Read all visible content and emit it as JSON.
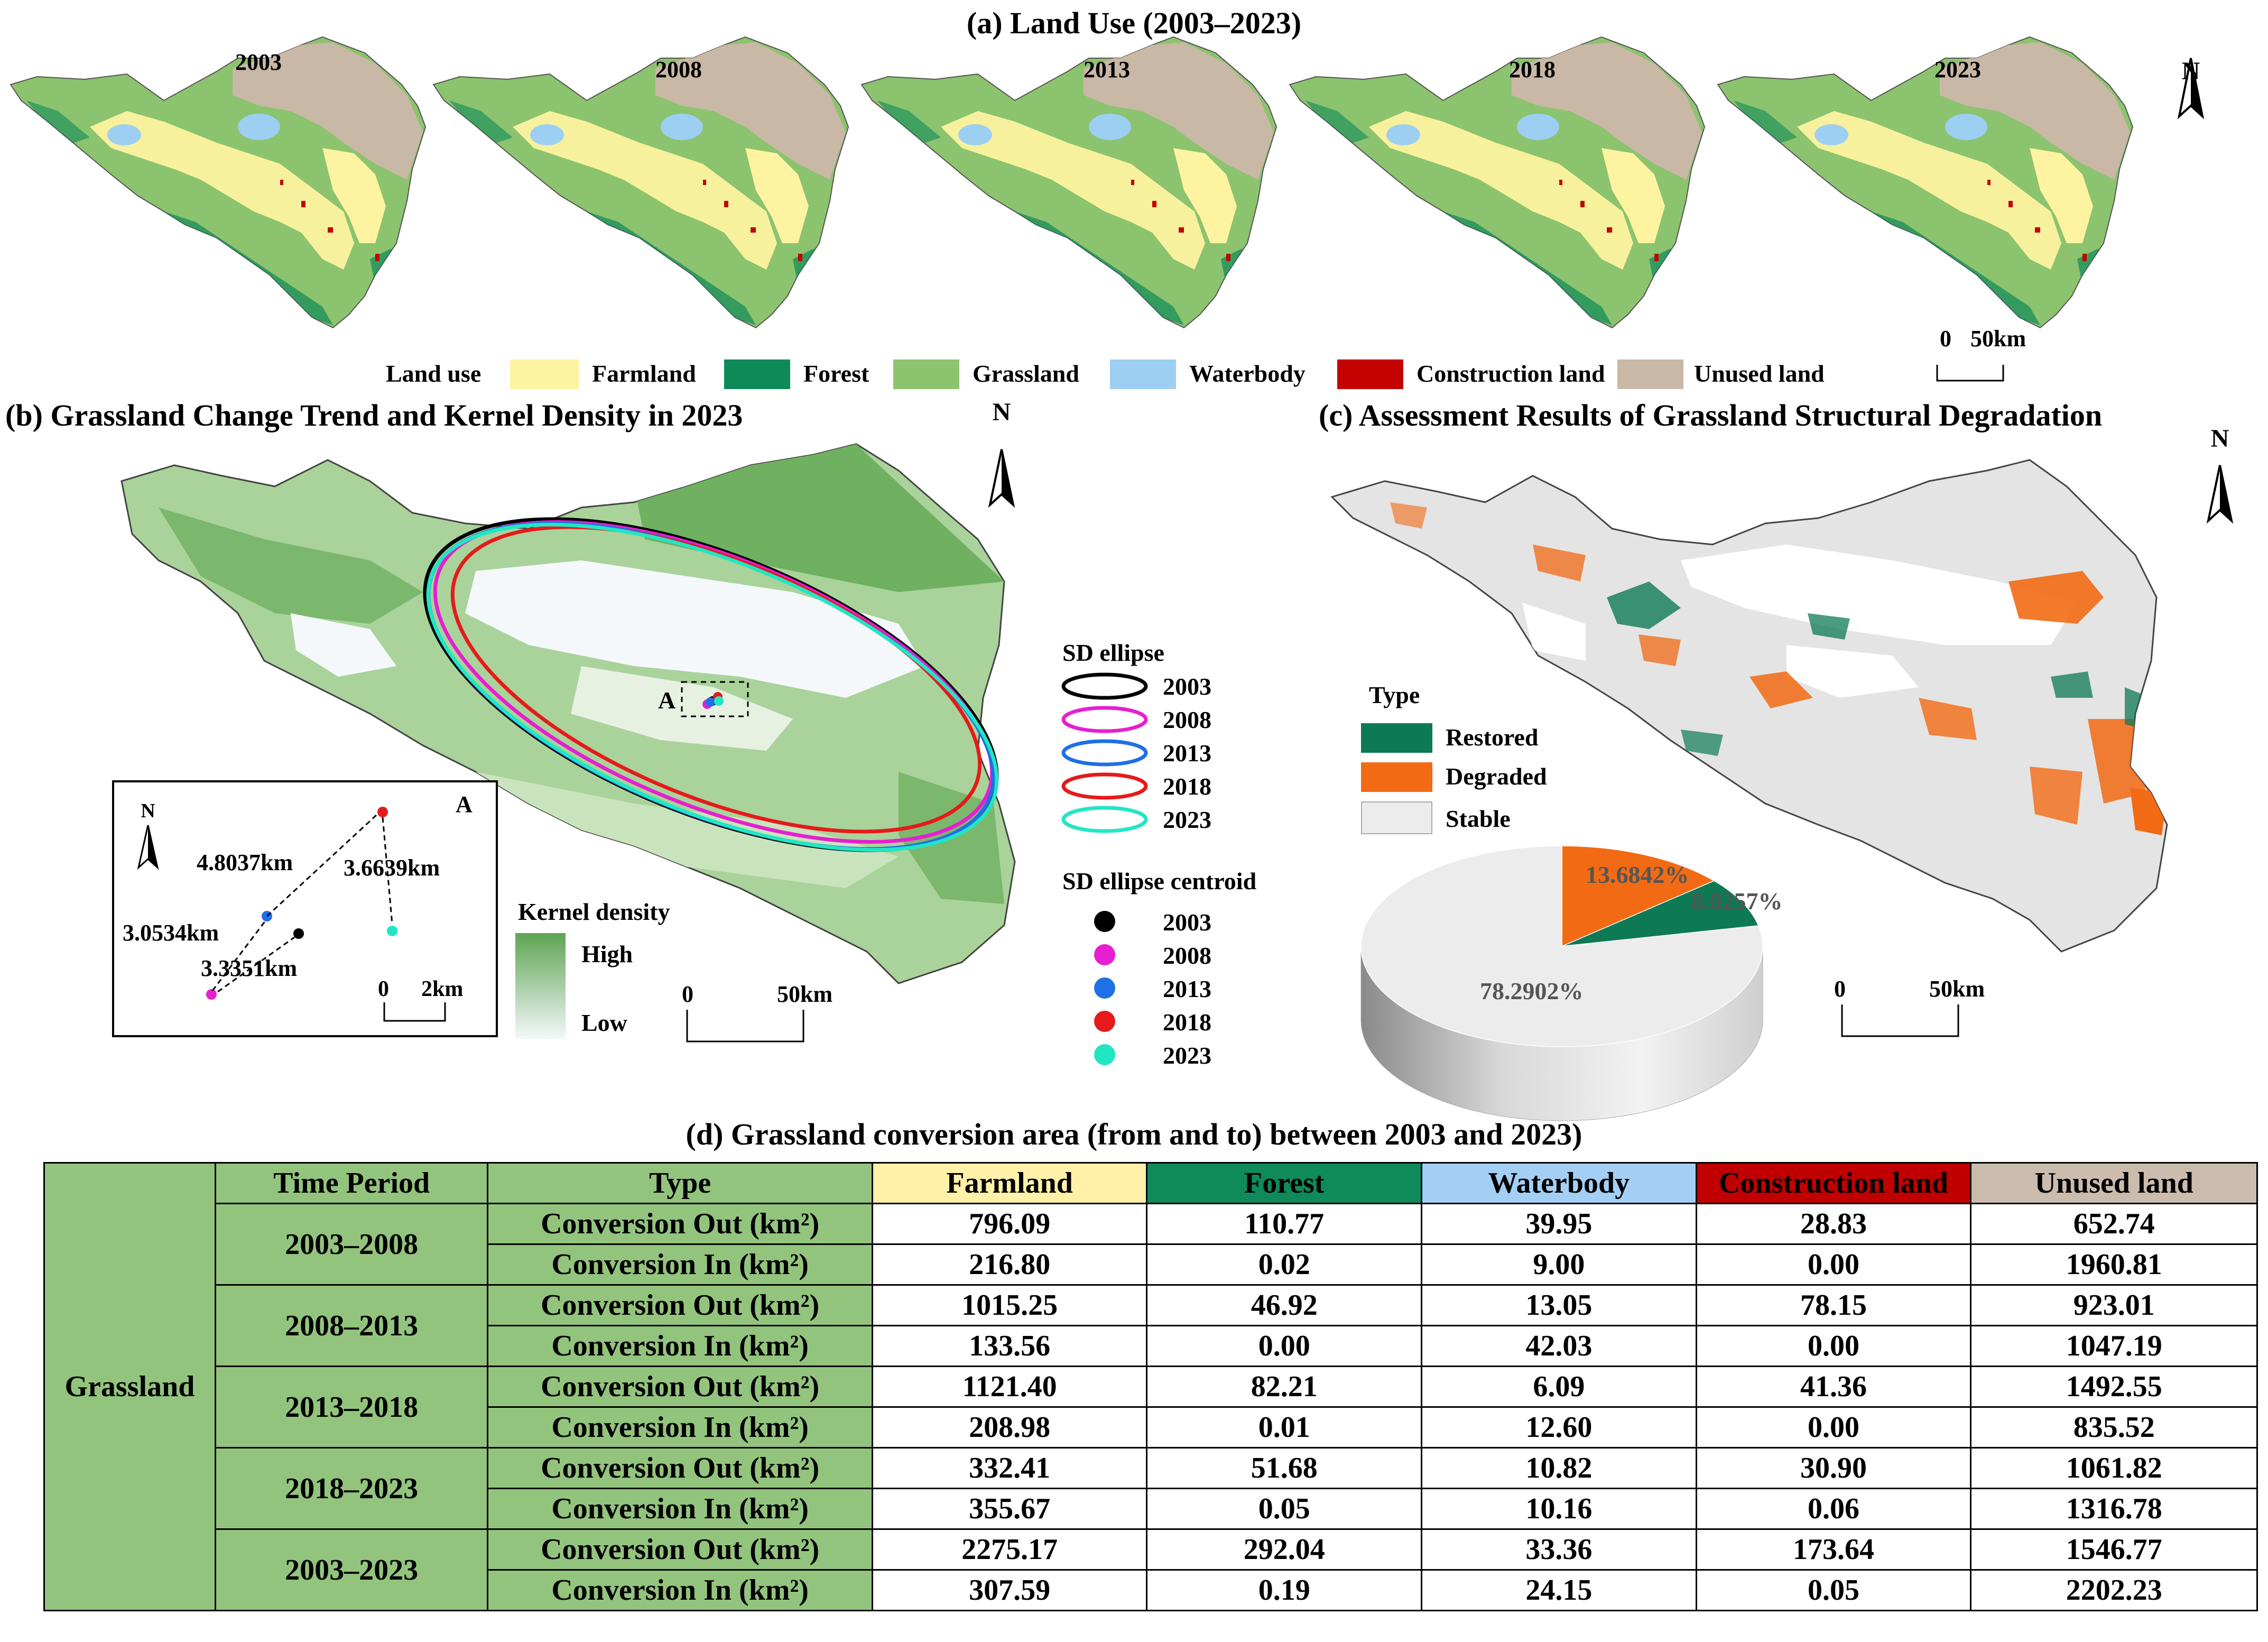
{
  "panel_a": {
    "title": "(a) Land Use (2003–2023)",
    "years": [
      "2003",
      "2008",
      "2013",
      "2018",
      "2023"
    ],
    "north": "N",
    "scale": {
      "zero": "0",
      "dist": "50km"
    },
    "legend": {
      "label": "Land use",
      "items": [
        {
          "name": "Farmland",
          "color": "#fdf3a0"
        },
        {
          "name": "Forest",
          "color": "#0e8a58"
        },
        {
          "name": "Grassland",
          "color": "#8cc36e"
        },
        {
          "name": "Waterbody",
          "color": "#9ccff2"
        },
        {
          "name": "Construction land",
          "color": "#c40000"
        },
        {
          "name": "Unused land",
          "color": "#c9b8a6"
        }
      ]
    }
  },
  "panel_b": {
    "title": "(b) Grassland Change Trend and Kernel Density in 2023",
    "north": "N",
    "point_label": "A",
    "scale": {
      "zero": "0",
      "dist": "50km"
    },
    "kernel": {
      "title": "Kernel density",
      "high": "High",
      "low": "Low"
    },
    "sd_ellipse": {
      "title": "SD ellipse",
      "items": [
        {
          "year": "2003",
          "color": "#000000"
        },
        {
          "year": "2008",
          "color": "#e61fd0"
        },
        {
          "year": "2013",
          "color": "#1f6fe6"
        },
        {
          "year": "2018",
          "color": "#e61a1a"
        },
        {
          "year": "2023",
          "color": "#21e6c4"
        }
      ]
    },
    "centroid": {
      "title": "SD ellipse centroid",
      "items": [
        {
          "year": "2003",
          "color": "#000000"
        },
        {
          "year": "2008",
          "color": "#e61fd0"
        },
        {
          "year": "2013",
          "color": "#1f6fe6"
        },
        {
          "year": "2018",
          "color": "#e61a1a"
        },
        {
          "year": "2023",
          "color": "#21e6c4"
        }
      ]
    },
    "inset": {
      "north": "N",
      "label": "A",
      "distances": [
        "4.8037km",
        "3.6639km",
        "3.0534km",
        "3.3351km"
      ],
      "scale": {
        "zero": "0",
        "dist": "2km"
      }
    }
  },
  "panel_c": {
    "title": "(c) Assessment Results of Grassland Structural Degradation",
    "north": "N",
    "scale": {
      "zero": "0",
      "dist": "50km"
    },
    "legend": {
      "title": "Type",
      "items": [
        {
          "name": "Restored",
          "color": "#0e7a55"
        },
        {
          "name": "Degraded",
          "color": "#f26a14"
        },
        {
          "name": "Stable",
          "color": "#ececec"
        }
      ]
    },
    "pie_labels": {
      "degraded": "13.6842%",
      "restored": "8.0257%",
      "stable": "78.2902%"
    }
  },
  "chart_data": {
    "type": "pie",
    "title": "Assessment Results of Grassland Structural Degradation",
    "categories": [
      "Stable",
      "Degraded",
      "Restored"
    ],
    "values": [
      78.2902,
      13.6842,
      8.0257
    ]
  },
  "panel_d": {
    "title": "(d) Grassland conversion area (from and to) between 2003 and 2023)",
    "row_header": "Grassland",
    "headers": [
      "Time Period",
      "Type",
      "Farmland",
      "Forest",
      "Waterbody",
      "Construction land",
      "Unused land"
    ],
    "out_label": "Conversion Out (km²)",
    "in_label": "Conversion In (km²)",
    "periods": [
      {
        "period": "2003–2008",
        "out": [
          "796.09",
          "110.77",
          "39.95",
          "28.83",
          "652.74"
        ],
        "in": [
          "216.80",
          "0.02",
          "9.00",
          "0.00",
          "1960.81"
        ]
      },
      {
        "period": "2008–2013",
        "out": [
          "1015.25",
          "46.92",
          "13.05",
          "78.15",
          "923.01"
        ],
        "in": [
          "133.56",
          "0.00",
          "42.03",
          "0.00",
          "1047.19"
        ]
      },
      {
        "period": "2013–2018",
        "out": [
          "1121.40",
          "82.21",
          "6.09",
          "41.36",
          "1492.55"
        ],
        "in": [
          "208.98",
          "0.01",
          "12.60",
          "0.00",
          "835.52"
        ]
      },
      {
        "period": "2018–2023",
        "out": [
          "332.41",
          "51.68",
          "10.82",
          "30.90",
          "1061.82"
        ],
        "in": [
          "355.67",
          "0.05",
          "10.16",
          "0.06",
          "1316.78"
        ]
      },
      {
        "period": "2003–2023",
        "out": [
          "2275.17",
          "292.04",
          "33.36",
          "173.64",
          "1546.77"
        ],
        "in": [
          "307.59",
          "0.19",
          "24.15",
          "0.05",
          "2202.23"
        ]
      }
    ]
  }
}
